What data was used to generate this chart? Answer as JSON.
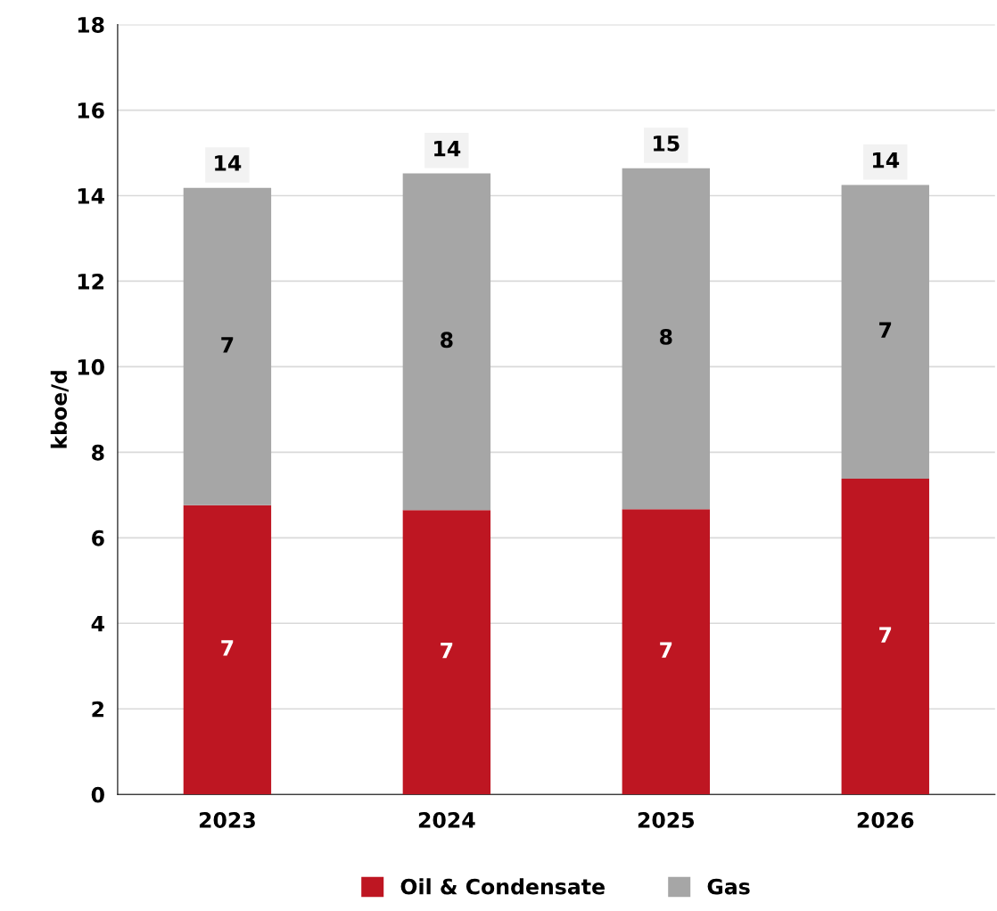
{
  "chart_data": {
    "type": "bar",
    "stacked": true,
    "ylabel": "kboe/d",
    "categories": [
      "2023",
      "2024",
      "2025",
      "2026"
    ],
    "series": [
      {
        "name": "Oil & Condensate",
        "color": "#be1622",
        "values": [
          6.76,
          6.65,
          6.67,
          7.38
        ],
        "value_labels": [
          "7",
          "7",
          "7",
          "7"
        ]
      },
      {
        "name": "Gas",
        "color": "#a6a6a6",
        "values": [
          7.42,
          7.87,
          7.97,
          6.87
        ],
        "value_labels": [
          "7",
          "8",
          "8",
          "7"
        ]
      }
    ],
    "totals": [
      "14",
      "14",
      "15",
      "14"
    ],
    "ylim": [
      0,
      18
    ],
    "yticks": [
      0,
      2,
      4,
      6,
      8,
      10,
      12,
      14,
      16,
      18
    ],
    "grid": "y",
    "legend": "bottom"
  }
}
